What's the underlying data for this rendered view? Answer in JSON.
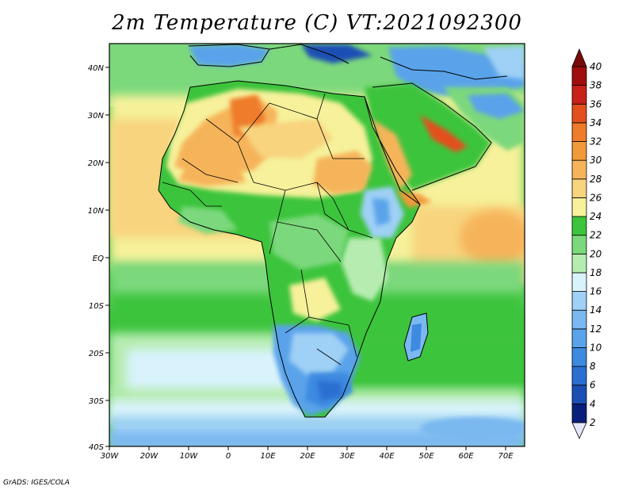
{
  "title": "2m Temperature (C) VT:2021092300",
  "credit": "GrADS: IGES/COLA",
  "chart_data": {
    "type": "heatmap",
    "title": "2m Temperature (C) VT:2021092300",
    "variable": "2m Temperature",
    "units": "C",
    "valid_time": "2021092300",
    "x_ticks": [
      "30W",
      "20W",
      "10W",
      "0",
      "10E",
      "20E",
      "30E",
      "40E",
      "50E",
      "60E",
      "70E"
    ],
    "y_ticks": [
      "40N",
      "30N",
      "20N",
      "10N",
      "EQ",
      "10S",
      "20S",
      "30S",
      "40S"
    ],
    "lon_range": [
      -30,
      75
    ],
    "lat_range": [
      -40,
      45
    ],
    "colorbar": {
      "levels": [
        "2",
        "4",
        "6",
        "8",
        "10",
        "12",
        "14",
        "16",
        "18",
        "20",
        "22",
        "24",
        "26",
        "28",
        "30",
        "32",
        "34",
        "36",
        "38",
        "40"
      ],
      "colors": [
        "#e6e6fa",
        "#0a1f7a",
        "#1c4fb4",
        "#2a6fd1",
        "#3d8ae0",
        "#5aa3ea",
        "#7ab8f0",
        "#9fd0f5",
        "#d8f3fb",
        "#b6ecb0",
        "#7bd87b",
        "#3cc43c",
        "#f6f19a",
        "#f8d47e",
        "#f6b45a",
        "#f19a3a",
        "#ee7c2a",
        "#e3501d",
        "#c9201a",
        "#a00d0d",
        "#7a0a0a"
      ]
    }
  }
}
